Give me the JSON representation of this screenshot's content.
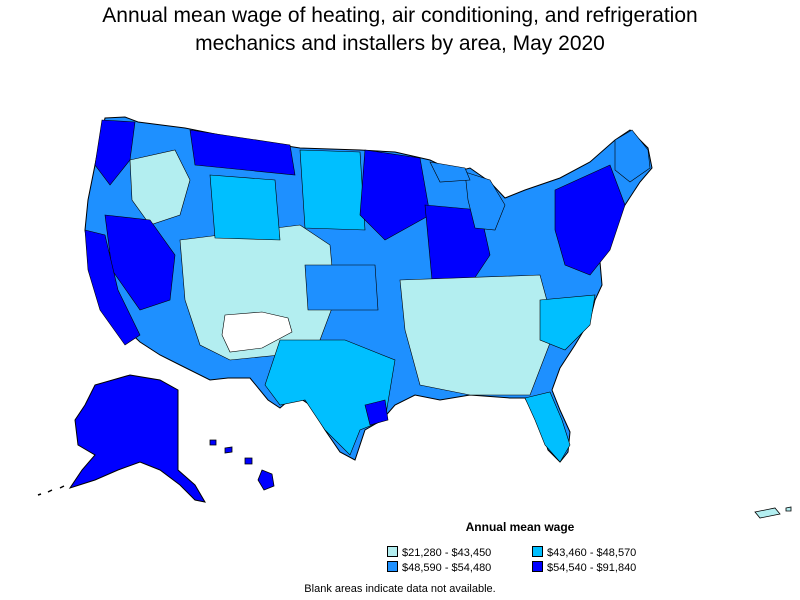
{
  "title_line1": "Annual mean wage of heating, air conditioning, and refrigeration",
  "title_line2": "mechanics and installers by area, May 2020",
  "legend": {
    "title": "Annual mean wage",
    "items": [
      {
        "label": "$21,280 - $43,450",
        "color": "#b3eef0"
      },
      {
        "label": "$43,460 - $48,570",
        "color": "#00bfff"
      },
      {
        "label": "$48,590 - $54,480",
        "color": "#1e90ff"
      },
      {
        "label": "$54,540 - $91,840",
        "color": "#0000ff"
      }
    ]
  },
  "footnote": "Blank areas indicate data not available.",
  "colors": {
    "outline": "#000000",
    "no_data": "#ffffff"
  }
}
